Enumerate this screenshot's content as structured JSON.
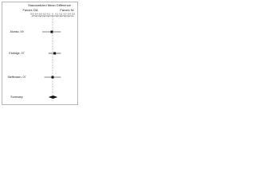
{
  "chart_data": {
    "type": "forest",
    "title": "Standardized Mean Difference",
    "left_label": "Favors OA",
    "right_label": "Favors NI",
    "categories": [
      "Alonso, 09",
      "Eldridge, 07",
      "Steffensen, 07",
      "Summary"
    ],
    "values": [
      -0.02,
      0.05,
      0.0,
      0.01
    ],
    "lower": [
      -0.25,
      -0.1,
      -0.2,
      -0.1
    ],
    "upper": [
      0.2,
      0.2,
      0.2,
      0.12
    ],
    "xlim": [
      -0.5,
      0.5
    ],
    "xticks": [
      -0.5,
      -0.4,
      -0.3,
      -0.2,
      -0.1,
      0,
      0.1,
      0.2,
      0.3,
      0.4,
      0.5
    ],
    "color": "#111111"
  }
}
